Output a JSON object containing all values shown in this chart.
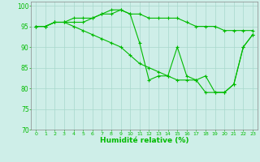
{
  "xlabel": "Humidité relative (%)",
  "xlim": [
    -0.5,
    23.5
  ],
  "ylim": [
    70,
    101
  ],
  "yticks": [
    70,
    75,
    80,
    85,
    90,
    95,
    100
  ],
  "xticks": [
    0,
    1,
    2,
    3,
    4,
    5,
    6,
    7,
    8,
    9,
    10,
    11,
    12,
    13,
    14,
    15,
    16,
    17,
    18,
    19,
    20,
    21,
    22,
    23
  ],
  "background_color": "#ceeee8",
  "grid_color": "#a8d8cc",
  "line_color": "#00bb00",
  "series": [
    [
      95,
      95,
      96,
      96,
      96,
      96,
      97,
      98,
      98,
      99,
      98,
      98,
      97,
      97,
      97,
      97,
      96,
      95,
      95,
      95,
      94,
      94,
      94,
      94
    ],
    [
      95,
      95,
      96,
      96,
      97,
      97,
      97,
      98,
      99,
      99,
      98,
      91,
      82,
      83,
      83,
      90,
      83,
      82,
      83,
      79,
      79,
      81,
      90,
      93
    ],
    [
      95,
      95,
      96,
      96,
      95,
      94,
      93,
      92,
      91,
      90,
      88,
      86,
      85,
      84,
      83,
      82,
      82,
      82,
      79,
      79,
      79,
      81,
      90,
      93
    ]
  ]
}
